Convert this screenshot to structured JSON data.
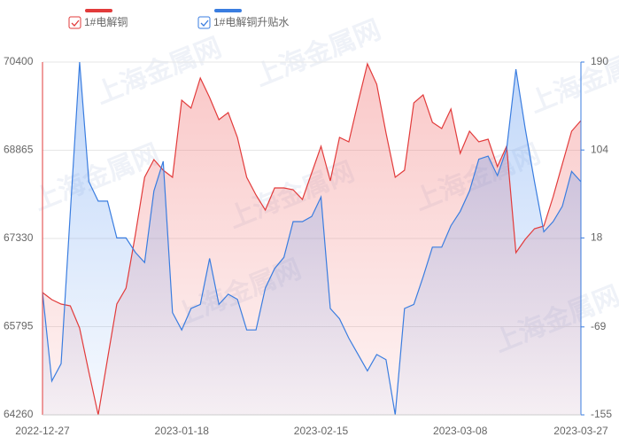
{
  "chart_data": {
    "type": "area",
    "watermark": "上海金属网",
    "categories": [
      "2022-12-27",
      null,
      null,
      null,
      null,
      null,
      null,
      null,
      null,
      null,
      null,
      null,
      null,
      null,
      null,
      "2023-01-18",
      null,
      null,
      null,
      null,
      null,
      null,
      null,
      null,
      null,
      null,
      null,
      null,
      null,
      null,
      "2023-02-15",
      null,
      null,
      null,
      null,
      null,
      null,
      null,
      null,
      null,
      null,
      null,
      null,
      null,
      null,
      "2023-03-08",
      null,
      null,
      null,
      null,
      null,
      null,
      null,
      null,
      null,
      null,
      null,
      null,
      "2023-03-27"
    ],
    "series": [
      {
        "name": "1#电解铜",
        "color": "#e23b3b",
        "axis": "y",
        "values": [
          66389,
          66266,
          66189,
          66158,
          65770,
          65000,
          64260,
          65232,
          66189,
          66466,
          67392,
          68394,
          68703,
          68518,
          68394,
          69737,
          69598,
          70122,
          69783,
          69397,
          69521,
          69089,
          68394,
          68086,
          67824,
          68209,
          68209,
          68178,
          68009,
          68471,
          68934,
          68333,
          69089,
          69011,
          69706,
          70369,
          70014,
          69166,
          68394,
          68518,
          69690,
          69829,
          69351,
          69243,
          69582,
          68811,
          69197,
          69011,
          69058,
          68579,
          68934,
          67083,
          67314,
          67500,
          67546,
          68055,
          68625,
          69197,
          69382
        ]
      },
      {
        "name": "1#电解铜升贴水",
        "color": "#3a7de0",
        "axis": "y2",
        "values": [
          -35,
          -122,
          -105,
          43,
          190,
          73,
          54,
          54,
          18,
          18,
          4,
          -6,
          64,
          93,
          -55,
          -72,
          -51,
          -47,
          -2,
          -47,
          -37,
          -42,
          -72,
          -72,
          -31,
          -12,
          -1,
          34,
          34,
          39,
          58,
          -51,
          -61,
          -80,
          -96,
          -112,
          -96,
          -101,
          -155,
          -51,
          -47,
          -20,
          9,
          9,
          30,
          44,
          64,
          95,
          98,
          79,
          105,
          183,
          125,
          73,
          24,
          34,
          49,
          83,
          73
        ]
      }
    ],
    "ylim": [
      64260,
      70400
    ],
    "yticks": [
      64260,
      65795,
      67330,
      68865,
      70400
    ],
    "y2lim": [
      -155,
      190
    ],
    "y2ticks": [
      -155,
      -69,
      18,
      104,
      190
    ],
    "grid": true,
    "legend": "top"
  }
}
